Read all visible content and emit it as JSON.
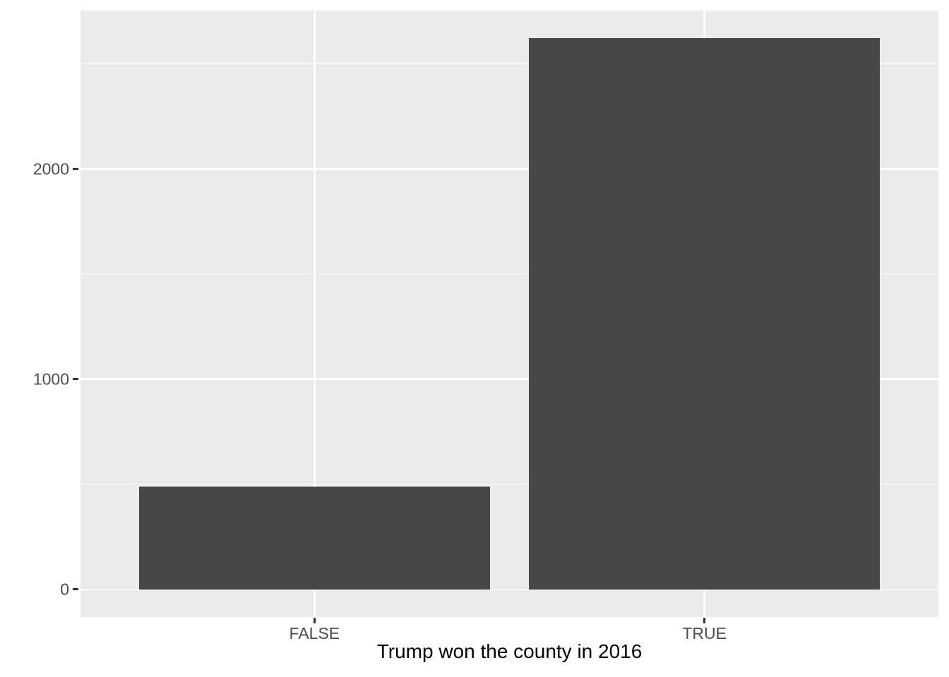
{
  "chart_data": {
    "type": "bar",
    "title": "",
    "xlabel": "Trump won the county in 2016",
    "ylabel": "",
    "categories": [
      "FALSE",
      "TRUE"
    ],
    "values": [
      490,
      2622
    ],
    "y_major_ticks": [
      0,
      1000,
      2000
    ],
    "y_minor_ticks": [
      500,
      1500,
      2500
    ],
    "ylim": [
      -131.1,
      2753.1
    ],
    "grid": true,
    "legend": "none",
    "style": {
      "bar_fill": "#474747",
      "panel_bg": "#EBEBEB",
      "grid_color": "#FFFFFF",
      "tick_color": "#333333",
      "axis_text_color": "#4D4D4D",
      "axis_title_color": "#000000",
      "background": "#FFFFFF"
    }
  }
}
